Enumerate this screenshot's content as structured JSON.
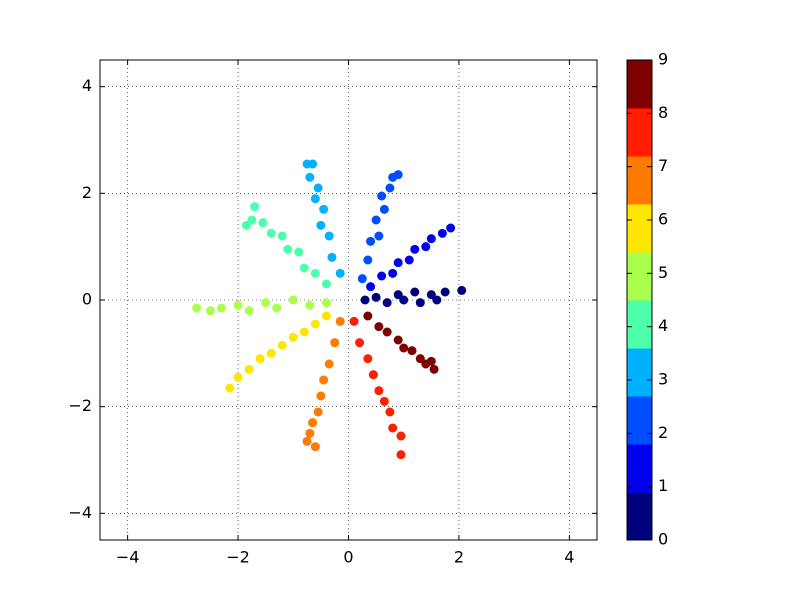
{
  "chart_data": {
    "type": "scatter",
    "x": [
      0.3,
      0.5,
      0.7,
      0.9,
      1.0,
      1.2,
      1.3,
      1.5,
      1.6,
      1.75,
      2.05,
      0.4,
      0.6,
      0.8,
      0.9,
      1.1,
      1.2,
      1.4,
      1.5,
      1.7,
      1.85,
      0.25,
      0.35,
      0.4,
      0.55,
      0.5,
      0.65,
      0.6,
      0.75,
      0.8,
      0.9,
      -0.15,
      -0.3,
      -0.35,
      -0.5,
      -0.45,
      -0.6,
      -0.55,
      -0.7,
      -0.75,
      -0.65,
      -0.4,
      -0.6,
      -0.8,
      -0.9,
      -1.1,
      -1.2,
      -1.4,
      -1.55,
      -1.75,
      -1.85,
      -1.7,
      -0.4,
      -0.7,
      -1.0,
      -1.3,
      -1.5,
      -1.8,
      -2.0,
      -2.3,
      -2.5,
      -2.75,
      -0.4,
      -0.6,
      -0.8,
      -1.0,
      -1.2,
      -1.4,
      -1.6,
      -1.8,
      -2.0,
      -2.15,
      -0.15,
      -0.25,
      -0.35,
      -0.45,
      -0.5,
      -0.55,
      -0.65,
      -0.7,
      -0.6,
      -0.75,
      0.1,
      0.2,
      0.35,
      0.45,
      0.55,
      0.65,
      0.75,
      0.8,
      0.95,
      0.95,
      0.35,
      0.55,
      0.7,
      0.9,
      1.0,
      1.15,
      1.3,
      1.4,
      1.55,
      1.5
    ],
    "y": [
      0.0,
      0.05,
      -0.05,
      0.1,
      0.0,
      0.15,
      -0.05,
      0.1,
      0.0,
      0.15,
      0.18,
      0.25,
      0.45,
      0.5,
      0.7,
      0.75,
      0.95,
      1.0,
      1.15,
      1.25,
      1.35,
      0.4,
      0.75,
      1.1,
      1.2,
      1.5,
      1.7,
      1.95,
      2.1,
      2.3,
      2.35,
      0.5,
      0.8,
      1.2,
      1.4,
      1.7,
      1.9,
      2.1,
      2.3,
      2.55,
      2.55,
      0.3,
      0.5,
      0.6,
      0.9,
      0.95,
      1.2,
      1.25,
      1.45,
      1.5,
      1.4,
      1.75,
      -0.05,
      -0.1,
      0.0,
      -0.15,
      -0.05,
      -0.2,
      -0.1,
      -0.15,
      -0.2,
      -0.15,
      -0.3,
      -0.45,
      -0.6,
      -0.7,
      -0.85,
      -1.0,
      -1.1,
      -1.3,
      -1.45,
      -1.65,
      -0.4,
      -0.8,
      -1.2,
      -1.5,
      -1.8,
      -2.1,
      -2.3,
      -2.5,
      -2.75,
      -2.65,
      -0.4,
      -0.8,
      -1.1,
      -1.4,
      -1.7,
      -1.9,
      -2.1,
      -2.4,
      -2.55,
      -2.9,
      -0.3,
      -0.5,
      -0.6,
      -0.75,
      -0.9,
      -0.95,
      -1.1,
      -1.2,
      -1.3,
      -1.15
    ],
    "c": [
      0,
      0,
      0,
      0,
      0,
      0,
      0,
      0,
      0,
      0,
      0,
      1,
      1,
      1,
      1,
      1,
      1,
      1,
      1,
      1,
      1,
      2,
      2,
      2,
      2,
      2,
      2,
      2,
      2,
      2,
      2,
      3,
      3,
      3,
      3,
      3,
      3,
      3,
      3,
      3,
      3,
      4,
      4,
      4,
      4,
      4,
      4,
      4,
      4,
      4,
      4,
      4,
      5,
      5,
      5,
      5,
      5,
      5,
      5,
      5,
      5,
      5,
      6,
      6,
      6,
      6,
      6,
      6,
      6,
      6,
      6,
      6,
      7,
      7,
      7,
      7,
      7,
      7,
      7,
      7,
      7,
      7,
      8,
      8,
      8,
      8,
      8,
      8,
      8,
      8,
      8,
      8,
      9,
      9,
      9,
      9,
      9,
      9,
      9,
      9,
      9,
      9
    ],
    "xlim": [
      -4.5,
      4.5
    ],
    "ylim": [
      -4.5,
      4.5
    ],
    "xticks": [
      {
        "value": -4,
        "label": "−4"
      },
      {
        "value": -2,
        "label": "−2"
      },
      0,
      2,
      4
    ],
    "yticks": [
      {
        "value": -4,
        "label": "−4"
      },
      {
        "value": -2,
        "label": "−2"
      },
      0,
      2,
      4
    ],
    "grid": true,
    "colorbar": {
      "lim": [
        0,
        9
      ],
      "ticks": [
        0,
        1,
        2,
        3,
        4,
        5,
        6,
        7,
        8,
        9
      ],
      "colors": [
        "#00007f",
        "#0000f1",
        "#004dff",
        "#00b1ff",
        "#4dffaa",
        "#aaff4d",
        "#ffe600",
        "#ff7a00",
        "#ff1e00",
        "#7f0000"
      ]
    }
  }
}
